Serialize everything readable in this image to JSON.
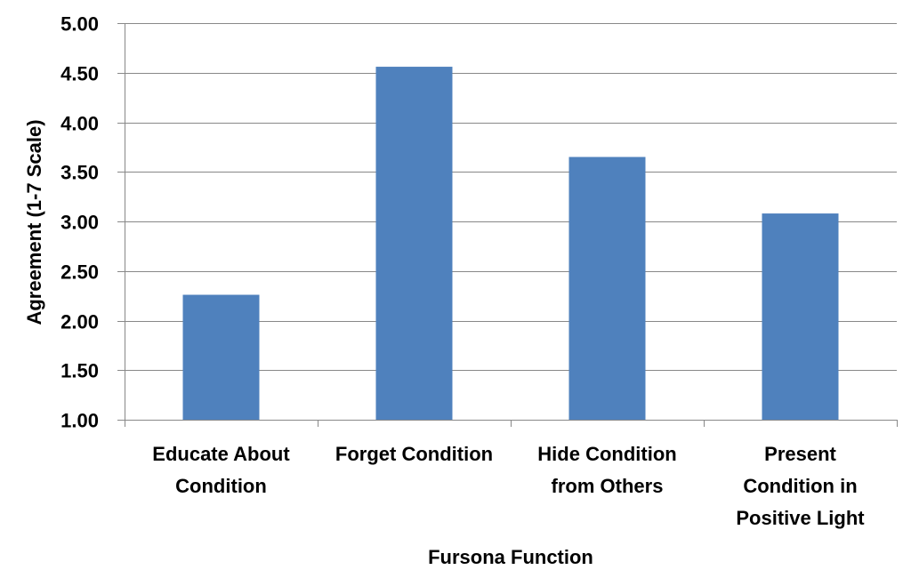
{
  "colors": {
    "bar": "#4F81BD",
    "grid": "#888888",
    "text": "#000000",
    "background": "#FFFFFF"
  },
  "chart_data": {
    "type": "bar",
    "categories": [
      [
        "Educate About",
        "Condition"
      ],
      [
        "Forget Condition"
      ],
      [
        "Hide Condition",
        "from Others"
      ],
      [
        "Present",
        "Condition in",
        "Positive Light"
      ]
    ],
    "values": [
      2.26,
      4.56,
      3.65,
      3.08
    ],
    "xlabel": "Fursona Function",
    "ylabel": "Agreement (1-7 Scale)",
    "ylim": [
      1.0,
      5.0
    ],
    "yticks": [
      "1.00",
      "1.50",
      "2.00",
      "2.50",
      "3.00",
      "3.50",
      "4.00",
      "4.50",
      "5.00"
    ],
    "ytick_values": [
      1.0,
      1.5,
      2.0,
      2.5,
      3.0,
      3.5,
      4.0,
      4.5,
      5.0
    ],
    "grid": true,
    "legend": "none"
  }
}
